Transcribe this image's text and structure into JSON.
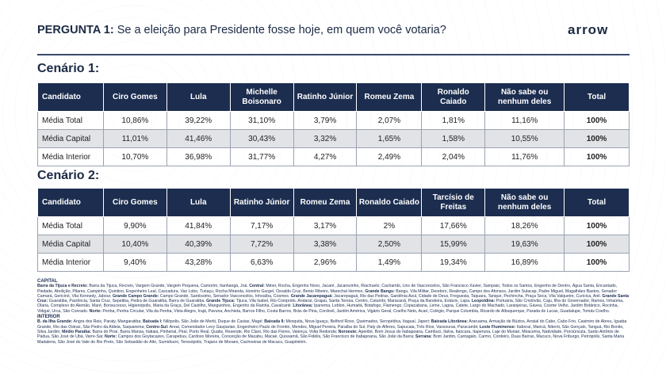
{
  "header": {
    "question_label": "PERGUNTA 1:",
    "question_text": " Se a eleição para Presidente fosse hoje, em quem você votaria?",
    "logo": "arrow"
  },
  "scenario1": {
    "title": "Cenário 1:",
    "columns": [
      "Candidato",
      "Ciro Gomes",
      "Lula",
      "Michelle Boisonaro",
      "Ratinho Júnior",
      "Romeu Zema",
      "Ronaldo Caiado",
      "Não sabe ou nenhum deles",
      "Total"
    ],
    "rows": [
      [
        "Média Total",
        "10,86%",
        "39,22%",
        "31,10%",
        "3,79%",
        "2,07%",
        "1,81%",
        "11,16%",
        "100%"
      ],
      [
        "Média Capital",
        "11,01%",
        "41,46%",
        "30,43%",
        "3,32%",
        "1,65%",
        "1,58%",
        "10,55%",
        "100%"
      ],
      [
        "Média Interior",
        "10,70%",
        "36,98%",
        "31,77%",
        "4,27%",
        "2,49%",
        "2,04%",
        "11,76%",
        "100%"
      ]
    ]
  },
  "scenario2": {
    "title": "Cenário 2:",
    "columns": [
      "Candidato",
      "Ciro Gomes",
      "Lula",
      "Ratinho Júnior",
      "Romeu Zema",
      "Ronaldo Caiado",
      "Tarcísio de Freitas",
      "Não sabe ou nenhum deles",
      "Total"
    ],
    "rows": [
      [
        "Média Total",
        "9,90%",
        "41,84%",
        "7,17%",
        "3,17%",
        "2%",
        "17,66%",
        "18,26%",
        "100%"
      ],
      [
        "Média Capital",
        "10,40%",
        "40,39%",
        "7,72%",
        "3,38%",
        "2,50%",
        "15,99%",
        "19,63%",
        "100%"
      ],
      [
        "Média Interior",
        "9,40%",
        "43,28%",
        "6,63%",
        "2,96%",
        "1,49%",
        "19,34%",
        "16,89%",
        "100%"
      ]
    ]
  },
  "notes": {
    "capital_title": "CAPITAL",
    "capital": [
      [
        "Barra da Tijuca e Recreio:",
        " Barra da Tijuca, Recreio, Vargem Grande, Vargem Pequena, Camorim, Itanhangá, Joá. "
      ],
      [
        "Central:",
        " Méier, Rocha, Engenho Novo, Jacaré, Jacarezinho, Riachuelo, Cachambi, Lins de Vasconcelos, São Francisco Xavier, Sampaio, Todos os Santos, Engenho de Dentro, Água Santa, Encantado, Piedade, Abolição, Pilares, Campinho, Quintino, Engenheiro Leal, Cascadura, Vaz Lobo, Turiaçu, Rocha Miranda, Honório Gurgel, Osvaldo Cruz, Bento Ribeiro, Marechal Hermes. "
      ],
      [
        "Grande Bangu:",
        " Bangu, Vila Militar, Deodoro, Realengo, Campo dos Afonsos, Jardim Sulacap, Padre Miguel, Magalhães Bastos, Senador Camará, Gericinó, Vila Kennedy, Jabour. "
      ],
      [
        "Grande Campo Grande:",
        " Campo Grande, Santíssimo, Senador Vasconcelos, Inhoaíba, Cosmos. "
      ],
      [
        "Grande Jacarepaguá:",
        " Jacarepaguá, Rio das Pedras, Gardênia Azul, Cidade de Deus, Freguesia, Taquara, Tanque, Pechincha, Praça Seca, Vila Valqueire, Curicica, Anil. "
      ],
      [
        "Grande Santa Cruz:",
        " Guaratiba, Paciência, Santa Cruz, Sepetiba, Pedra de Guaratiba, Barra de Guaratiba. "
      ],
      [
        "Grande Tijuca:",
        " Tijuca, Vila Isabel, Rio Comprido, Andaraí, Grajaú, Santa Teresa, Centro, Catumbi, Maracanã, Praça da Bandeira, Estácio, Lapa. "
      ],
      [
        "Leopoldina:",
        " Portuária, São Cristóvão, Caju, Ilha do Governador, Ramos, Inhaúma, Olaria, Complexo do Alemão, Maré, Bonsucesso, Higienópolis, Maria da Graça, Del Castilho, Manguinhos, Engenho da Rainha, Cavalcanti. "
      ],
      [
        "Litorânea:",
        " Ipanema, Leblon, Humaitá, Botafogo, Flamengo, Copacabana, Leme, Lagoa, Catete, Largo do Machado, Laranjeiras, Gávea, Cosme Velho, Jardim Botânico, Rocinha, Vidigal, Urca, São Conrado. "
      ],
      [
        "Norte:",
        " Penha, Penha Circular, Vila da Penha, Vista Alegre, Irajá, Pavuna, Anchieta, Barros Filho, Costa Barros, Brás de Pina, Cordovil, Jardim América, Vigário Geral, Coelho Neto, Acari, Colégio, Parque Columbia, Ricardo de Albuquerque, Parada de Lucas, Guadalupe, Tomás Coelho."
      ]
    ],
    "interior_title": "INTERIOR",
    "interior": [
      [
        "B. da Ilha Grande:",
        " Angra dos Reis, Paraty, Mangaratiba; "
      ],
      [
        "Baixada I:",
        " Nilópolis, São João de Meriti, Duque de Caxias, Magé; "
      ],
      [
        "Baixada II:",
        " Mesquita, Nova Iguaçu, Belford Roxo, Queimados, Seropédica, Itaguaí, Japeri; "
      ],
      [
        "Baixada Litorânea:",
        " Araruama, Armação de Búzios, Arraial do Cabo, Cabo Frio, Casimiro de Abreu, Iguaba Grande, Rio das Ostras, São Pedro da Aldeia, Saquarema; "
      ],
      [
        "Centro-Sul:",
        " Areal, Comendador Levy Gasparian, Engenheiro Paulo de Frontin, Mendes, Miguel Pereira, Paraíba do Sul, Paty do Alferes, Sapucaia, Três Rios, Vassouras, Paracambi; "
      ],
      [
        "Leste Fluminense:",
        " Itaboraí, Maricá, Niterói, São Gonçalo, Tanguá, Rio Bonito, Silva Jardim; "
      ],
      [
        "Médio Paraíba:",
        " Barra do Piraí, Barra Mansa, Itatiaia, Pinheiral, Piraí, Porto Real, Quatis, Resende, Rio Claro, Rio das Flores, Valença, Volta Redonda; "
      ],
      [
        "Noroeste:",
        " Aperibé, Bom Jesus do Itabapoana, Cambuci, Italva, Itaocara, Itaperuna, Laje do Muriaé, Miracema, Natividade, Porciúncula, Santo Antônio de Pádua, São José de Ubá, Varre-Sai; "
      ],
      [
        "Norte:",
        " Campos dos Goytacazes, Carapebus, Cardoso Moreira, Conceição de Macabu, Macaé, Quissamã, São Fidélis, São Francisco de Itabapoana, São João da Barra; "
      ],
      [
        "Serrana:",
        " Bom Jardim, Cantagalo, Carmo, Cordeiro, Duas Barras, Macuco, Nova Friburgo, Petrópolis, Santa Maria Madalena, São José do Vale do Rio Preto, São Sebastião do Alto, Sumidouro, Teresópolis, Trajano de Moraes, Cachoeiras de Macacu, Guapimirim."
      ]
    ]
  }
}
